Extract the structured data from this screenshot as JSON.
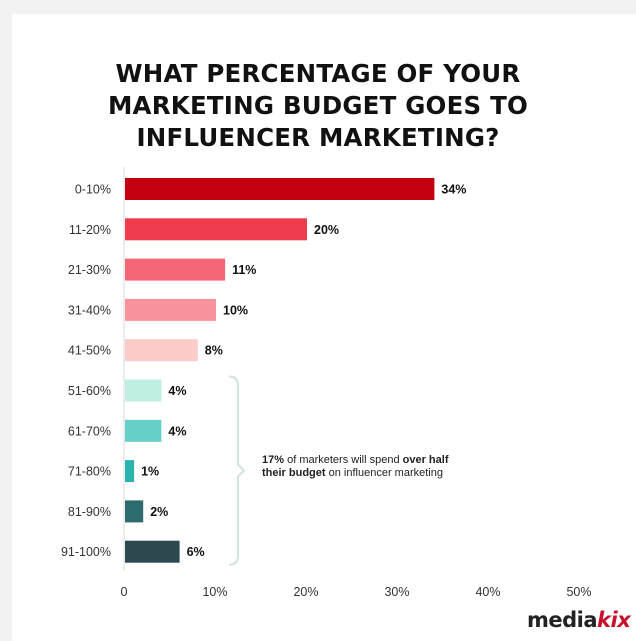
{
  "chart_data": {
    "type": "bar",
    "orientation": "horizontal",
    "title": "WHAT PERCENTAGE OF YOUR MARKETING BUDGET GOES TO INFLUENCER MARKETING?",
    "title_lines": [
      "WHAT PERCENTAGE OF YOUR",
      "MARKETING BUDGET GOES TO",
      "INFLUENCER MARKETING?"
    ],
    "categories": [
      "0-10%",
      "11-20%",
      "21-30%",
      "31-40%",
      "41-50%",
      "51-60%",
      "61-70%",
      "71-80%",
      "81-90%",
      "91-100%"
    ],
    "values": [
      34,
      20,
      11,
      10,
      8,
      4,
      4,
      1,
      2,
      6
    ],
    "value_labels": [
      "34%",
      "20%",
      "11%",
      "10%",
      "8%",
      "4%",
      "4%",
      "1%",
      "2%",
      "6%"
    ],
    "bar_colors": [
      "#c3000f",
      "#ee3b4e",
      "#f66775",
      "#f9939b",
      "#fccbca",
      "#bfeee2",
      "#66cfc7",
      "#2bb3ad",
      "#2e6b6f",
      "#2e4850"
    ],
    "xlim": [
      0,
      50
    ],
    "xticks": [
      0,
      10,
      20,
      30,
      40,
      50
    ],
    "xtick_labels": [
      "0",
      "10%",
      "20%",
      "30%",
      "40%",
      "50%"
    ],
    "grid": false,
    "annotation": {
      "bracket_range": [
        "51-60%",
        "91-100%"
      ],
      "bold_1": "17%",
      "text_1": " of marketers will spend ",
      "bold_2": "over half their budget",
      "text_2": " on influencer marketing"
    }
  },
  "brand": {
    "logo_part1": "media",
    "logo_part2": "kix"
  }
}
